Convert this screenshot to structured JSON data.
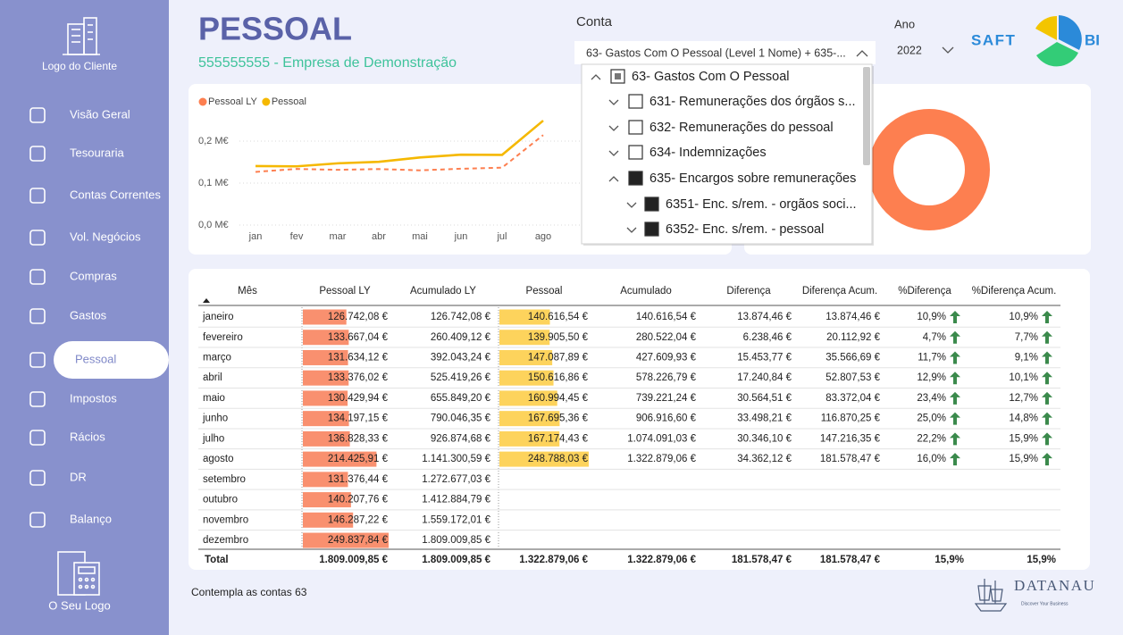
{
  "sidebar": {
    "logo_top": "Logo do Cliente",
    "menu": [
      "Visão Geral",
      "Tesouraria",
      "Contas Correntes",
      "Vol. Negócios",
      "Compras",
      "Gastos",
      "Pessoal",
      "Impostos",
      "Rácios",
      "DR",
      "Balanço"
    ],
    "active": 6,
    "logo_bottom": "O Seu Logo"
  },
  "header": {
    "title": "PESSOAL",
    "subtitle": "555555555 - Empresa de Demonstração"
  },
  "filters": {
    "conta": {
      "label": "Conta",
      "selected": "63- Gastos Com O Pessoal (Level 1 Nome) + 635-...",
      "items": [
        {
          "label": "63- Gastos Com O Pessoal",
          "level": 0,
          "state": "partial",
          "expanded": true
        },
        {
          "label": "631- Remunerações dos órgãos s...",
          "level": 1,
          "state": "unchecked",
          "expanded": false
        },
        {
          "label": "632- Remunerações do pessoal",
          "level": 1,
          "state": "unchecked",
          "expanded": false
        },
        {
          "label": "634- Indemnizações",
          "level": 1,
          "state": "unchecked",
          "expanded": false
        },
        {
          "label": "635- Encargos sobre remunerações",
          "level": 1,
          "state": "checked",
          "expanded": true
        },
        {
          "label": "6351- Enc. s/rem. - orgãos soci...",
          "level": 2,
          "state": "checked",
          "expanded": false
        },
        {
          "label": "6352- Enc. s/rem. - pessoal",
          "level": 2,
          "state": "checked",
          "expanded": false
        }
      ]
    },
    "ano": {
      "label": "Ano",
      "selected": "2022"
    }
  },
  "brand": {
    "saft": "SAFT",
    "bi": "BI",
    "datanau": "DATANAU",
    "tagline": "Discover Your Business"
  },
  "chart_data": {
    "type": "line",
    "categories": [
      "jan",
      "fev",
      "mar",
      "abr",
      "mai",
      "jun",
      "jul",
      "ago"
    ],
    "series": [
      {
        "name": "Pessoal LY",
        "color": "#fd7f50",
        "dashed": true,
        "values": [
          0.1267,
          0.1337,
          0.1316,
          0.1334,
          0.1304,
          0.1342,
          0.1368,
          0.2144
        ]
      },
      {
        "name": "Pessoal",
        "color": "#f5b800",
        "dashed": false,
        "values": [
          0.1406,
          0.1399,
          0.1471,
          0.1506,
          0.161,
          0.1677,
          0.1672,
          0.2488
        ]
      }
    ],
    "ylim": [
      0,
      0.28
    ],
    "yticks": [
      {
        "value": 0,
        "label": "0,0 M€"
      },
      {
        "value": 0.1,
        "label": "0,1 M€"
      },
      {
        "value": 0.2,
        "label": "0,2 M€"
      }
    ],
    "grid": true,
    "legend": "top-left"
  },
  "table": {
    "columns": [
      "Mês",
      "Pessoal LY",
      "Acumulado LY",
      "Pessoal",
      "Acumulado",
      "Diferença",
      "Diferença Acum.",
      "%Diferença",
      "%Diferença Acum."
    ],
    "bar_columns": [
      {
        "column": 1,
        "color": "#f9906f"
      },
      {
        "column": 3,
        "color": "#fdd35c"
      }
    ],
    "rows": [
      [
        "janeiro",
        "126.742,08 €",
        "126.742,08 €",
        "140.616,54 €",
        "140.616,54 €",
        "13.874,46 €",
        "13.874,46 €",
        "10,9%",
        "10,9%"
      ],
      [
        "fevereiro",
        "133.667,04 €",
        "260.409,12 €",
        "139.905,50 €",
        "280.522,04 €",
        "6.238,46 €",
        "20.112,92 €",
        "4,7%",
        "7,7%"
      ],
      [
        "março",
        "131.634,12 €",
        "392.043,24 €",
        "147.087,89 €",
        "427.609,93 €",
        "15.453,77 €",
        "35.566,69 €",
        "11,7%",
        "9,1%"
      ],
      [
        "abril",
        "133.376,02 €",
        "525.419,26 €",
        "150.616,86 €",
        "578.226,79 €",
        "17.240,84 €",
        "52.807,53 €",
        "12,9%",
        "10,1%"
      ],
      [
        "maio",
        "130.429,94 €",
        "655.849,20 €",
        "160.994,45 €",
        "739.221,24 €",
        "30.564,51 €",
        "83.372,04 €",
        "23,4%",
        "12,7%"
      ],
      [
        "junho",
        "134.197,15 €",
        "790.046,35 €",
        "167.695,36 €",
        "906.916,60 €",
        "33.498,21 €",
        "116.870,25 €",
        "25,0%",
        "14,8%"
      ],
      [
        "julho",
        "136.828,33 €",
        "926.874,68 €",
        "167.174,43 €",
        "1.074.091,03 €",
        "30.346,10 €",
        "147.216,35 €",
        "22,2%",
        "15,9%"
      ],
      [
        "agosto",
        "214.425,91 €",
        "1.141.300,59 €",
        "248.788,03 €",
        "1.322.879,06 €",
        "34.362,12 €",
        "181.578,47 €",
        "16,0%",
        "15,9%"
      ],
      [
        "setembro",
        "131.376,44 €",
        "1.272.677,03 €"
      ],
      [
        "outubro",
        "140.207,76 €",
        "1.412.884,79 €"
      ],
      [
        "novembro",
        "146.287,22 €",
        "1.559.172,01 €"
      ],
      [
        "dezembro",
        "249.837,84 €",
        "1.809.009,85 €"
      ]
    ],
    "total": [
      "Total",
      "1.809.009,85 €",
      "1.809.009,85 €",
      "1.322.879,06 €",
      "1.322.879,06 €",
      "181.578,47 €",
      "181.578,47 €",
      "15,9%",
      "15,9%"
    ]
  },
  "footnote": "Contempla as contas 63"
}
